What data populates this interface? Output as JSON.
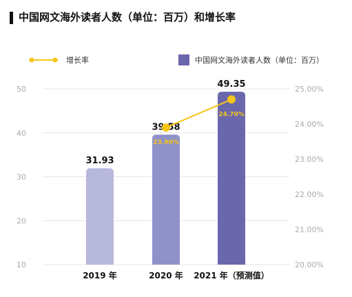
{
  "chart_data": {
    "type": "bar+line",
    "title": "中国网文海外读者人数（单位：百万）和增长率",
    "categories": [
      "2019 年",
      "2020 年",
      "2021 年（预测值）"
    ],
    "bar_series": {
      "name": "中国网文海外读者人数（单位：百万）",
      "values": [
        31.93,
        39.58,
        49.35
      ],
      "value_labels": [
        "31.93",
        "39.58",
        "49.35"
      ],
      "colors": [
        "#b7b8dc",
        "#8e92c8",
        "#6a67ad"
      ]
    },
    "line_series": {
      "name": "增长率",
      "points": [
        {
          "category_index": 1,
          "value": 23.9,
          "label": "23.90%"
        },
        {
          "category_index": 2,
          "value": 24.7,
          "label": "24.70%"
        }
      ],
      "color": "#f5c518"
    },
    "left_axis": {
      "min": 10,
      "max": 50,
      "ticks": [
        "10",
        "20",
        "30",
        "40",
        "50"
      ]
    },
    "right_axis": {
      "min": 20,
      "max": 25,
      "ticks": [
        "20.00%",
        "21.00%",
        "22.00%",
        "23.00%",
        "24.00%",
        "25.00%"
      ]
    },
    "legend": {
      "position": "top"
    },
    "grid": true
  }
}
